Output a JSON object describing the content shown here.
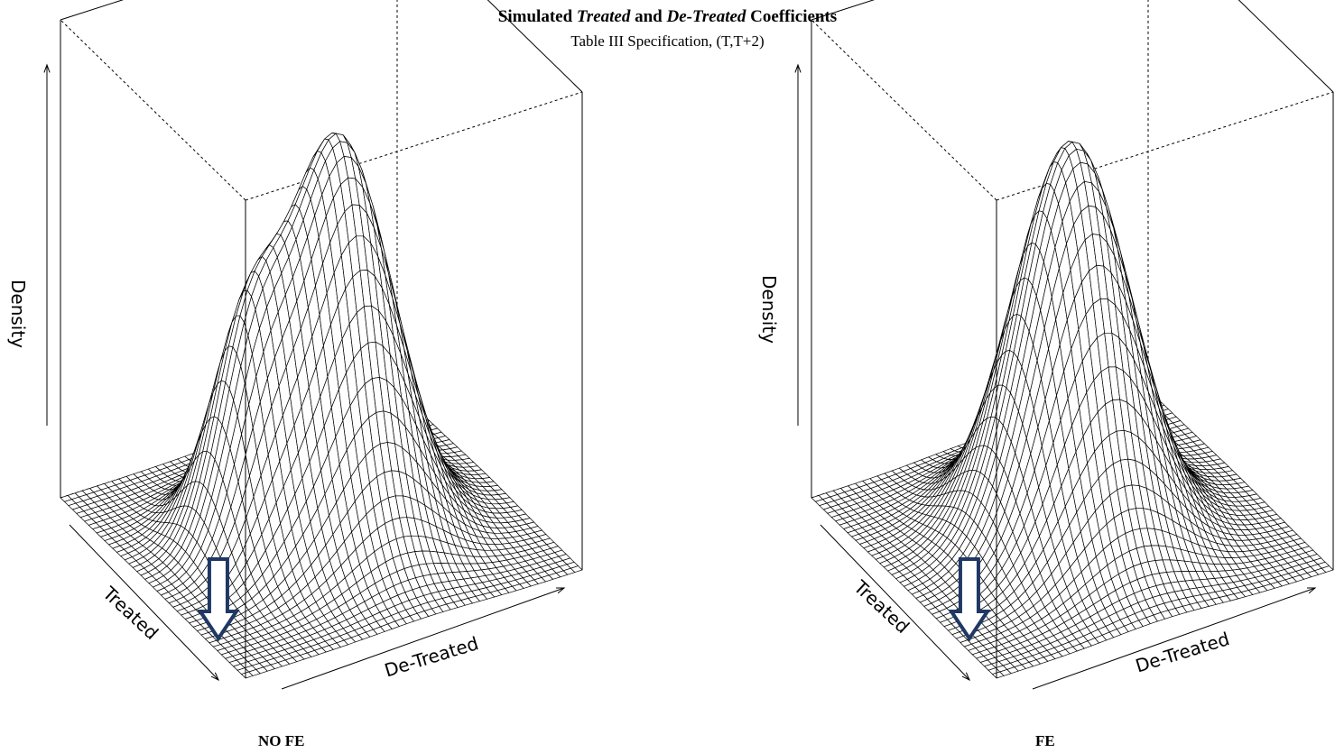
{
  "title": {
    "part1": "Simulated ",
    "treated": "Treated",
    "part2": " and ",
    "detreated": "De-Treated",
    "part3": " Coefficients"
  },
  "subtitle": "Table III Specification, (T,T+2)",
  "chart_data": [
    {
      "type": "surface",
      "caption": "NO FE",
      "xlabel": "De-Treated",
      "ylabel": "Treated",
      "zlabel": "Density",
      "peaks": [
        {
          "x": 0.55,
          "y": 0.5,
          "height": 1.0,
          "spread_x": 0.14,
          "spread_y": 0.16
        },
        {
          "x": 0.3,
          "y": 0.55,
          "height": 0.45,
          "spread_x": 0.09,
          "spread_y": 0.12
        }
      ],
      "annotation": "arrow pointing down"
    },
    {
      "type": "surface",
      "caption": "FE",
      "xlabel": "De-Treated",
      "ylabel": "Treated",
      "zlabel": "Density",
      "peaks": [
        {
          "x": 0.5,
          "y": 0.5,
          "height": 1.0,
          "spread_x": 0.15,
          "spread_y": 0.17
        }
      ],
      "annotation": "arrow pointing down"
    }
  ]
}
